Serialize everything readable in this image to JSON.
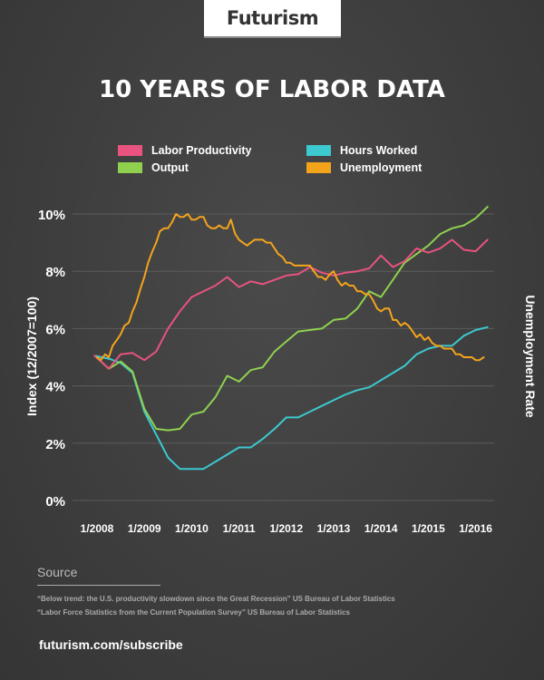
{
  "brand": {
    "logo_text": "Futurism"
  },
  "header": {
    "title": "10 YEARS OF LABOR DATA"
  },
  "chart_data": {
    "type": "line",
    "title": "10 YEARS OF LABOR DATA",
    "xlabel": "",
    "ylabel": "Index (12/2007=100)",
    "ylabel_right": "Unemployment Rate",
    "y_tick_labels": [
      "0%",
      "2%",
      "4%",
      "6%",
      "8%",
      "10%"
    ],
    "y_ticks": [
      0,
      2,
      4,
      6,
      8,
      10
    ],
    "ylim": [
      0,
      10.4
    ],
    "x_tick_labels": [
      "1/2008",
      "1/2009",
      "1/2010",
      "1/2011",
      "1/2012",
      "1/2013",
      "1/2014",
      "1/2015",
      "1/2016"
    ],
    "x_ticks": [
      2008,
      2009,
      2010,
      2011,
      2012,
      2013,
      2014,
      2015,
      2016
    ],
    "xlim": [
      2007.95,
      2016.4
    ],
    "grid": true,
    "legend": "top-center",
    "series": [
      {
        "name": "Labor Productivity",
        "color": "#e8537f",
        "x": [
          2007.95,
          2008.25,
          2008.5,
          2008.75,
          2009.0,
          2009.25,
          2009.5,
          2009.75,
          2010.0,
          2010.5,
          2010.75,
          2011.0,
          2011.25,
          2011.5,
          2011.75,
          2012.0,
          2012.25,
          2012.5,
          2012.75,
          2013.0,
          2013.25,
          2013.5,
          2013.75,
          2014.0,
          2014.25,
          2014.5,
          2014.75,
          2015.0,
          2015.25,
          2015.5,
          2015.75,
          2016.0,
          2016.25
        ],
        "values": [
          5.05,
          4.6,
          5.1,
          5.15,
          4.9,
          5.2,
          6.0,
          6.6,
          7.1,
          7.5,
          7.8,
          7.45,
          7.65,
          7.55,
          7.7,
          7.85,
          7.9,
          8.15,
          7.95,
          7.85,
          7.95,
          8.0,
          8.1,
          8.55,
          8.15,
          8.35,
          8.8,
          8.65,
          8.8,
          9.1,
          8.75,
          8.7,
          9.1
        ]
      },
      {
        "name": "Output",
        "color": "#8fd14f",
        "x": [
          2007.95,
          2008.25,
          2008.5,
          2008.75,
          2009.0,
          2009.25,
          2009.5,
          2009.75,
          2010.0,
          2010.25,
          2010.5,
          2010.75,
          2011.0,
          2011.25,
          2011.5,
          2011.75,
          2012.0,
          2012.25,
          2012.5,
          2012.75,
          2013.0,
          2013.25,
          2013.5,
          2013.75,
          2014.0,
          2014.25,
          2014.5,
          2014.75,
          2015.0,
          2015.25,
          2015.5,
          2015.75,
          2016.0,
          2016.25
        ],
        "values": [
          5.05,
          4.6,
          4.85,
          4.5,
          3.2,
          2.5,
          2.45,
          2.5,
          3.0,
          3.1,
          3.6,
          4.35,
          4.15,
          4.55,
          4.65,
          5.2,
          5.55,
          5.9,
          5.95,
          6.0,
          6.3,
          6.35,
          6.7,
          7.3,
          7.1,
          7.7,
          8.3,
          8.6,
          8.9,
          9.3,
          9.5,
          9.6,
          9.85,
          10.25
        ]
      },
      {
        "name": "Hours Worked",
        "color": "#3cc9cf",
        "x": [
          2007.95,
          2008.25,
          2008.5,
          2008.75,
          2009.0,
          2009.25,
          2009.5,
          2009.75,
          2010.0,
          2010.25,
          2010.5,
          2010.75,
          2011.0,
          2011.25,
          2011.5,
          2011.75,
          2012.0,
          2012.25,
          2012.5,
          2012.75,
          2013.0,
          2013.25,
          2013.5,
          2013.75,
          2014.0,
          2014.25,
          2014.5,
          2014.75,
          2015.0,
          2015.25,
          2015.5,
          2015.75,
          2016.0,
          2016.25
        ],
        "values": [
          5.05,
          4.95,
          4.8,
          4.45,
          3.1,
          2.3,
          1.5,
          1.1,
          1.1,
          1.1,
          1.35,
          1.6,
          1.85,
          1.85,
          2.15,
          2.5,
          2.9,
          2.9,
          3.1,
          3.3,
          3.5,
          3.7,
          3.85,
          3.95,
          4.2,
          4.45,
          4.7,
          5.1,
          5.3,
          5.4,
          5.4,
          5.75,
          5.95,
          6.05
        ]
      },
      {
        "name": "Unemployment",
        "color": "#f4a41b",
        "x": [
          2008.0,
          2008.08,
          2008.17,
          2008.25,
          2008.33,
          2008.42,
          2008.5,
          2008.58,
          2008.67,
          2008.75,
          2008.83,
          2008.92,
          2009.0,
          2009.08,
          2009.17,
          2009.25,
          2009.33,
          2009.42,
          2009.5,
          2009.58,
          2009.67,
          2009.75,
          2009.83,
          2009.92,
          2010.0,
          2010.08,
          2010.17,
          2010.25,
          2010.33,
          2010.42,
          2010.5,
          2010.58,
          2010.67,
          2010.75,
          2010.83,
          2010.92,
          2011.0,
          2011.08,
          2011.17,
          2011.25,
          2011.33,
          2011.42,
          2011.5,
          2011.58,
          2011.67,
          2011.75,
          2011.83,
          2011.92,
          2012.0,
          2012.08,
          2012.17,
          2012.25,
          2012.33,
          2012.42,
          2012.5,
          2012.58,
          2012.67,
          2012.75,
          2012.83,
          2012.92,
          2013.0,
          2013.08,
          2013.17,
          2013.25,
          2013.33,
          2013.42,
          2013.5,
          2013.58,
          2013.67,
          2013.75,
          2013.83,
          2013.92,
          2014.0,
          2014.08,
          2014.17,
          2014.25,
          2014.33,
          2014.42,
          2014.5,
          2014.58,
          2014.67,
          2014.75,
          2014.83,
          2014.92,
          2015.0,
          2015.08,
          2015.17,
          2015.25,
          2015.33,
          2015.42,
          2015.5,
          2015.58,
          2015.67,
          2015.75,
          2015.83,
          2015.92,
          2016.0,
          2016.08,
          2016.17
        ],
        "values": [
          5.0,
          4.9,
          5.1,
          5.0,
          5.4,
          5.6,
          5.8,
          6.1,
          6.2,
          6.6,
          6.9,
          7.4,
          7.8,
          8.3,
          8.7,
          9.0,
          9.4,
          9.5,
          9.5,
          9.7,
          10.0,
          9.9,
          9.9,
          10.0,
          9.8,
          9.8,
          9.9,
          9.9,
          9.6,
          9.5,
          9.5,
          9.6,
          9.5,
          9.5,
          9.8,
          9.3,
          9.1,
          9.0,
          8.9,
          9.0,
          9.1,
          9.1,
          9.1,
          9.0,
          9.0,
          8.8,
          8.6,
          8.5,
          8.3,
          8.3,
          8.2,
          8.2,
          8.2,
          8.2,
          8.2,
          8.0,
          7.8,
          7.8,
          7.7,
          7.9,
          8.0,
          7.7,
          7.5,
          7.6,
          7.5,
          7.5,
          7.3,
          7.3,
          7.2,
          7.2,
          7.0,
          6.7,
          6.6,
          6.7,
          6.7,
          6.3,
          6.3,
          6.1,
          6.2,
          6.1,
          5.9,
          5.7,
          5.8,
          5.6,
          5.7,
          5.5,
          5.4,
          5.4,
          5.3,
          5.3,
          5.3,
          5.1,
          5.1,
          5.0,
          5.0,
          5.0,
          4.9,
          4.9,
          5.0
        ]
      }
    ]
  },
  "source": {
    "heading": "Source",
    "lines": [
      "“Below trend: the U.S. productivity slowdown since the Great Recession” US Bureau of Labor Statistics",
      "“Labor Force Statistics from the Current Population Survey” US Bureau of Labor Statistics"
    ]
  },
  "footer": {
    "subscribe": "futurism.com/subscribe"
  }
}
